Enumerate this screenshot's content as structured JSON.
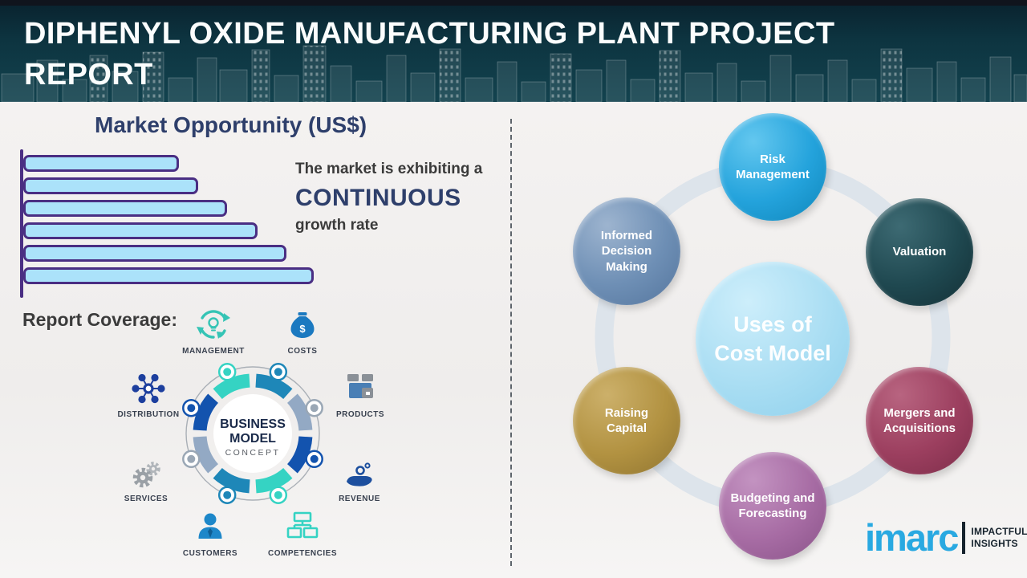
{
  "header": {
    "title": "DIPHENYL OXIDE MANUFACTURING PLANT PROJECT\nREPORT"
  },
  "market_opportunity": {
    "title": "Market Opportunity (US$)",
    "caption_line1": "The market is exhibiting a",
    "caption_highlight": "CONTINUOUS",
    "caption_line2": "growth rate"
  },
  "chart_data": {
    "type": "bar",
    "orientation": "horizontal",
    "title": "Market Opportunity (US$)",
    "categories": [
      "",
      "",
      "",
      "",
      "",
      ""
    ],
    "values": [
      188,
      212,
      248,
      286,
      322,
      356
    ],
    "values_note": "no numeric axis shown; values are relative bar lengths in px, increasing steadily",
    "xlabel": "",
    "ylabel": "",
    "grid": false,
    "bar_fill": "#ABE2FA",
    "bar_border": "#4A2E83",
    "annotation": "The market is exhibiting a CONTINUOUS growth rate"
  },
  "report_coverage": {
    "label": "Report Coverage:"
  },
  "business_model": {
    "center_line1": "BUSINESS",
    "center_line2": "MODEL",
    "center_subtitle": "CONCEPT",
    "segment_colors": [
      "#35D3C3",
      "#1E87B8",
      "#93A9C4",
      "#1353AE"
    ],
    "items": [
      {
        "label": "MANAGEMENT",
        "icon": "management-cycle-icon"
      },
      {
        "label": "COSTS",
        "icon": "money-bag-icon"
      },
      {
        "label": "DISTRIBUTION",
        "icon": "network-hub-icon"
      },
      {
        "label": "PRODUCTS",
        "icon": "box-icon"
      },
      {
        "label": "SERVICES",
        "icon": "gears-icon"
      },
      {
        "label": "REVENUE",
        "icon": "hand-coins-icon"
      },
      {
        "label": "CUSTOMERS",
        "icon": "person-icon"
      },
      {
        "label": "COMPETENCIES",
        "icon": "org-chart-icon"
      }
    ]
  },
  "cost_model": {
    "center_line1": "Uses of",
    "center_line2": "Cost Model",
    "center_color": "#A6DCF2",
    "nodes": [
      {
        "label": "Risk Management",
        "color": "#24A3DC"
      },
      {
        "label": "Informed Decision Making",
        "color": "#6E8FB5"
      },
      {
        "label": "Valuation",
        "color": "#1F4850"
      },
      {
        "label": "Raising Capital",
        "color": "#B29241"
      },
      {
        "label": "Mergers and Acquisitions",
        "color": "#9C3F5F"
      },
      {
        "label": "Budgeting and Forecasting",
        "color": "#A76CA4"
      }
    ]
  },
  "logo": {
    "brand": "imarc",
    "brand_color": "#29A9E1",
    "tagline_line1": "IMPACTFUL",
    "tagline_line2": "INSIGHTS"
  }
}
